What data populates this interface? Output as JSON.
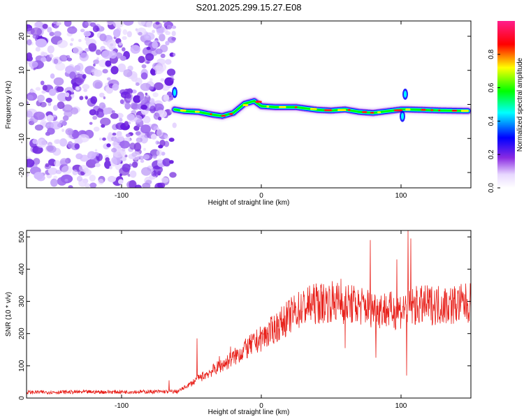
{
  "figure_title": "S201.2025.299.15.27.E08",
  "chart_data": [
    {
      "type": "heatmap",
      "title": "",
      "xlabel": "Height of straight line (km)",
      "ylabel": "Frequency (Hz)",
      "xlim": [
        -168,
        150
      ],
      "ylim": [
        -24.5,
        24.5
      ],
      "xticks": [
        -100,
        0,
        100
      ],
      "yticks": [
        -20,
        -10,
        0,
        10,
        20
      ],
      "noise_region_x": [
        -168,
        -62
      ],
      "trace": {
        "name": "Doppler signal track",
        "x": [
          -62,
          -55,
          -45,
          -35,
          -28,
          -20,
          -12,
          -5,
          0,
          10,
          25,
          40,
          50,
          60,
          70,
          80,
          90,
          100,
          105,
          115,
          130,
          148
        ],
        "freq": [
          -1.5,
          -2.0,
          -2.2,
          -3.0,
          -3.4,
          -2.5,
          0.2,
          1.0,
          -0.5,
          -0.8,
          -0.8,
          -1.6,
          -1.8,
          -1.5,
          -2.2,
          -2.5,
          -2.0,
          -1.5,
          -1.5,
          -1.6,
          -1.8,
          -1.9
        ]
      },
      "colorbar": {
        "label": "Normalized spectral amplitude",
        "range": [
          0.0,
          1.0
        ],
        "ticks": [
          "0.0",
          "0.2",
          "0.4",
          "0.6",
          "0.8"
        ],
        "colors": [
          "#ffffff",
          "#8a2be2",
          "#0000ff",
          "#00ffff",
          "#00ff00",
          "#ffff00",
          "#ff0000",
          "#ff00ff"
        ]
      }
    },
    {
      "type": "line",
      "title": "",
      "xlabel": "Height of straight line (km)",
      "ylabel": "SNR (10 * v/v)",
      "xlim": [
        -168,
        150
      ],
      "ylim": [
        0,
        520
      ],
      "xticks": [
        -100,
        0,
        100
      ],
      "yticks": [
        0,
        100,
        200,
        300,
        400,
        500
      ],
      "series": [
        {
          "name": "SNR",
          "color": "#e8231d",
          "baseline": {
            "x": [
              -168,
              -60,
              -52,
              -45,
              -35,
              -25,
              -15,
              -5,
              5,
              15,
              25,
              35,
              50,
              65,
              80,
              95,
              110,
              125,
              140,
              150
            ],
            "y": [
              18,
              20,
              40,
              60,
              85,
              110,
              140,
              170,
              200,
              235,
              270,
              290,
              300,
              290,
              280,
              270,
              285,
              290,
              290,
              295
            ]
          },
          "spikes": {
            "x": [
              -66,
              -46,
              -30,
              -22,
              -12,
              57,
              60,
              78,
              82,
              97,
              104,
              105,
              107
            ],
            "y": [
              55,
              185,
              130,
              160,
              175,
              370,
              155,
              490,
              125,
              430,
              70,
              520,
              495
            ]
          }
        }
      ]
    }
  ]
}
